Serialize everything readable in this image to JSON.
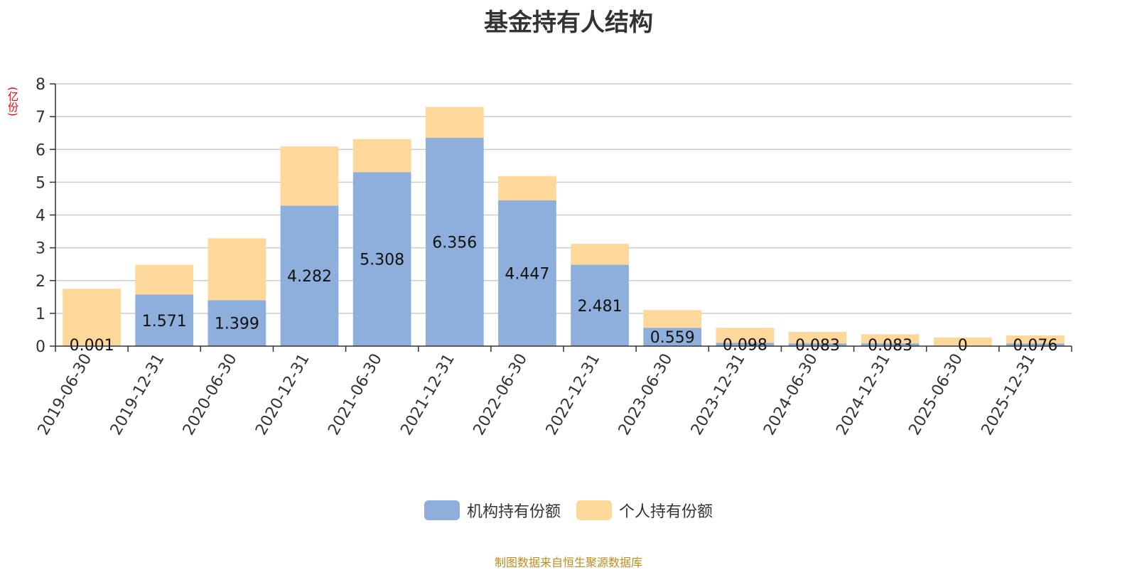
{
  "chart_data": {
    "type": "bar",
    "stacked": true,
    "title": "基金持有人结构",
    "ylabel": "(亿份)",
    "ylim": [
      0,
      8
    ],
    "yticks": [
      0,
      1,
      2,
      3,
      4,
      5,
      6,
      7,
      8
    ],
    "grid": true,
    "legend_position": "bottom-center",
    "categories": [
      "2019-06-30",
      "2019-12-31",
      "2020-06-30",
      "2020-12-31",
      "2021-06-30",
      "2021-12-31",
      "2022-06-30",
      "2022-12-31",
      "2023-06-30",
      "2023-12-31",
      "2024-06-30",
      "2024-12-31",
      "2025-06-30",
      "2025-12-31"
    ],
    "series": [
      {
        "name": "机构持有份额",
        "color": "#8eaedb",
        "values": [
          0.001,
          1.571,
          1.399,
          4.282,
          5.308,
          6.356,
          4.447,
          2.481,
          0.559,
          0.098,
          0.083,
          0.083,
          0,
          0.076
        ],
        "labels": [
          "0.001",
          "1.571",
          "1.399",
          "4.282",
          "5.308",
          "6.356",
          "4.447",
          "2.481",
          "0.559",
          "0.098",
          "0.083",
          "0.083",
          "0",
          "0.076"
        ]
      },
      {
        "name": "个人持有份额",
        "color": "#fdd89a",
        "values": [
          1.75,
          0.91,
          1.89,
          1.81,
          1.01,
          0.94,
          0.74,
          0.64,
          0.54,
          0.46,
          0.35,
          0.28,
          0.26,
          0.25
        ]
      }
    ]
  },
  "footer": {
    "source_note": "制图数据来自恒生聚源数据库"
  }
}
